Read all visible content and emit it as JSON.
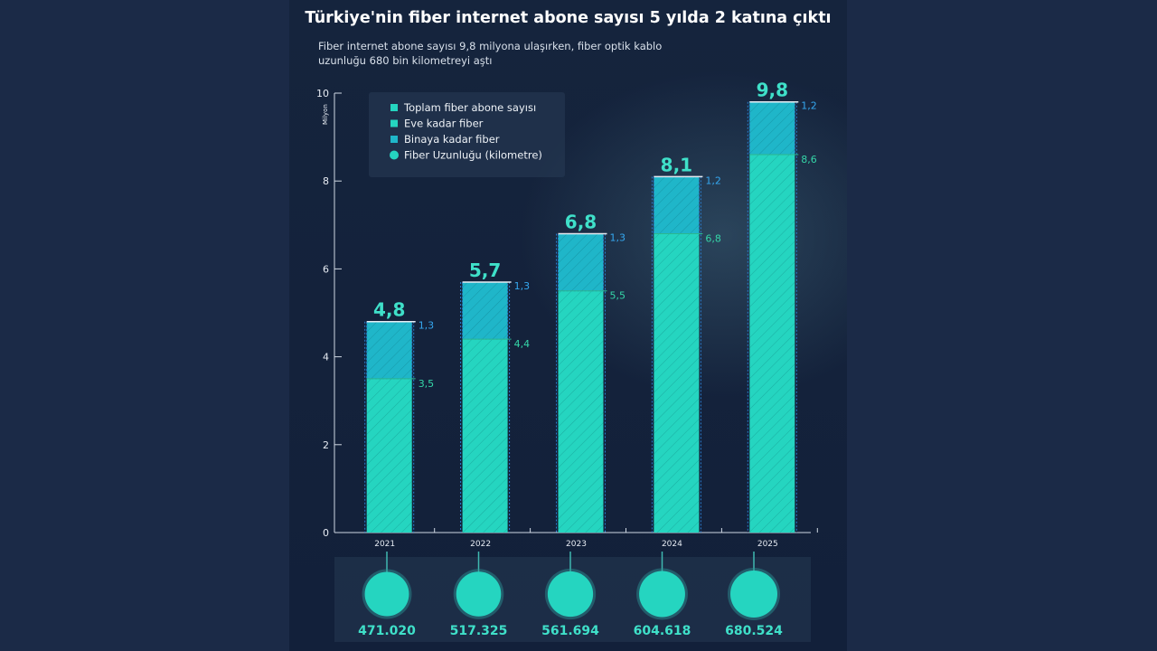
{
  "title": "Türkiye'nin fiber internet abone sayısı 5 yılda 2 katına çıktı",
  "subtitle": "Fiber internet abone sayısı 9,8 milyona ulaşırken, fiber optik kablo uzunluğu 680 bin kilometreyi aştı",
  "colors": {
    "background": "#1b2a47",
    "panel": "#14223b",
    "eve": "#25d5c0",
    "binaya": "#1fb6c9",
    "upper_label": "#35a8f0",
    "lower_label": "#35d6a8"
  },
  "chart_data": {
    "type": "bar",
    "stacked": true,
    "ylabel": "Milyon",
    "ylim": [
      0,
      10
    ],
    "yticks": [
      "0",
      "2",
      "4",
      "6",
      "8",
      "10"
    ],
    "categories": [
      "2021",
      "2022",
      "2023",
      "2024",
      "2025"
    ],
    "totals": [
      4.8,
      5.7,
      6.8,
      8.1,
      9.8
    ],
    "total_labels": [
      "4,8",
      "5,7",
      "6,8",
      "8,1",
      "9,8"
    ],
    "series": [
      {
        "name": "Eve kadar fiber",
        "values": [
          3.5,
          4.4,
          5.5,
          6.8,
          8.6
        ],
        "labels": [
          "3,5",
          "4,4",
          "5,5",
          "6,8",
          "8,6"
        ]
      },
      {
        "name": "Binaya kadar fiber",
        "values": [
          1.3,
          1.3,
          1.3,
          1.2,
          1.2
        ],
        "labels": [
          "1,3",
          "1,3",
          "1,3",
          "1,2",
          "1,2"
        ]
      }
    ],
    "legend": {
      "position": "top-left",
      "items": [
        "Toplam fiber abone sayısı",
        "Eve kadar fiber",
        "Binaya kadar fiber",
        "Fiber Uzunluğu  (kilometre)"
      ]
    },
    "fiber_length": {
      "values": [
        471020,
        517325,
        561694,
        604618,
        680524
      ],
      "labels": [
        "471.020",
        "517.325",
        "561.694",
        "604.618",
        "680.524"
      ]
    }
  }
}
